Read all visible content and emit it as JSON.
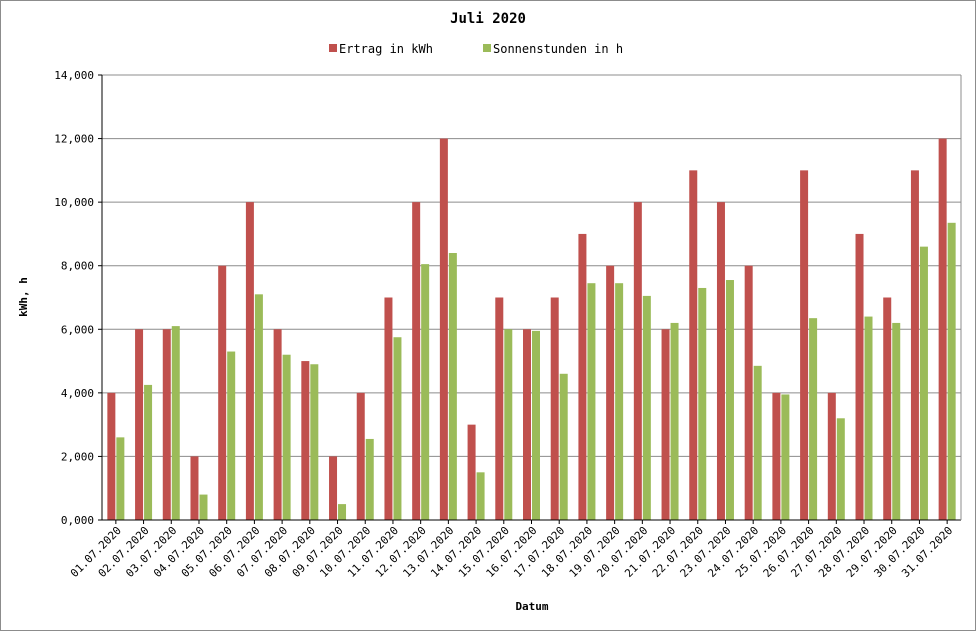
{
  "chart_data": {
    "type": "bar",
    "title": "Juli 2020",
    "xlabel": "Datum",
    "ylabel": "kWh, h",
    "ylim": [
      0,
      14
    ],
    "y_ticks": [
      0,
      2,
      4,
      6,
      8,
      10,
      12,
      14
    ],
    "y_tick_labels": [
      "0,000",
      "2,000",
      "4,000",
      "6,000",
      "8,000",
      "10,000",
      "12,000",
      "14,000"
    ],
    "grid": true,
    "legend_position": "top-center",
    "categories": [
      "01.07.2020",
      "02.07.2020",
      "03.07.2020",
      "04.07.2020",
      "05.07.2020",
      "06.07.2020",
      "07.07.2020",
      "08.07.2020",
      "09.07.2020",
      "10.07.2020",
      "11.07.2020",
      "12.07.2020",
      "13.07.2020",
      "14.07.2020",
      "15.07.2020",
      "16.07.2020",
      "17.07.2020",
      "18.07.2020",
      "19.07.2020",
      "20.07.2020",
      "21.07.2020",
      "22.07.2020",
      "23.07.2020",
      "24.07.2020",
      "25.07.2020",
      "26.07.2020",
      "27.07.2020",
      "28.07.2020",
      "29.07.2020",
      "30.07.2020",
      "31.07.2020"
    ],
    "series": [
      {
        "name": "Ertrag in kWh",
        "color": "#c0504d",
        "values": [
          4,
          6,
          6,
          2,
          8,
          10,
          6,
          5,
          2,
          4,
          7,
          10,
          12,
          3,
          7,
          6,
          7,
          9,
          8,
          10,
          6,
          11,
          10,
          8,
          4,
          11,
          4,
          9,
          7,
          11,
          12
        ]
      },
      {
        "name": "Sonnenstunden in h",
        "color": "#9bbb59",
        "values": [
          2.6,
          4.25,
          6.1,
          0.8,
          5.3,
          7.1,
          5.2,
          4.9,
          0.5,
          2.55,
          5.75,
          8.05,
          8.4,
          1.5,
          6.0,
          5.95,
          4.6,
          7.45,
          7.45,
          7.05,
          6.2,
          7.3,
          7.55,
          4.85,
          3.95,
          6.35,
          3.2,
          6.4,
          6.2,
          8.6,
          9.35
        ]
      }
    ]
  }
}
